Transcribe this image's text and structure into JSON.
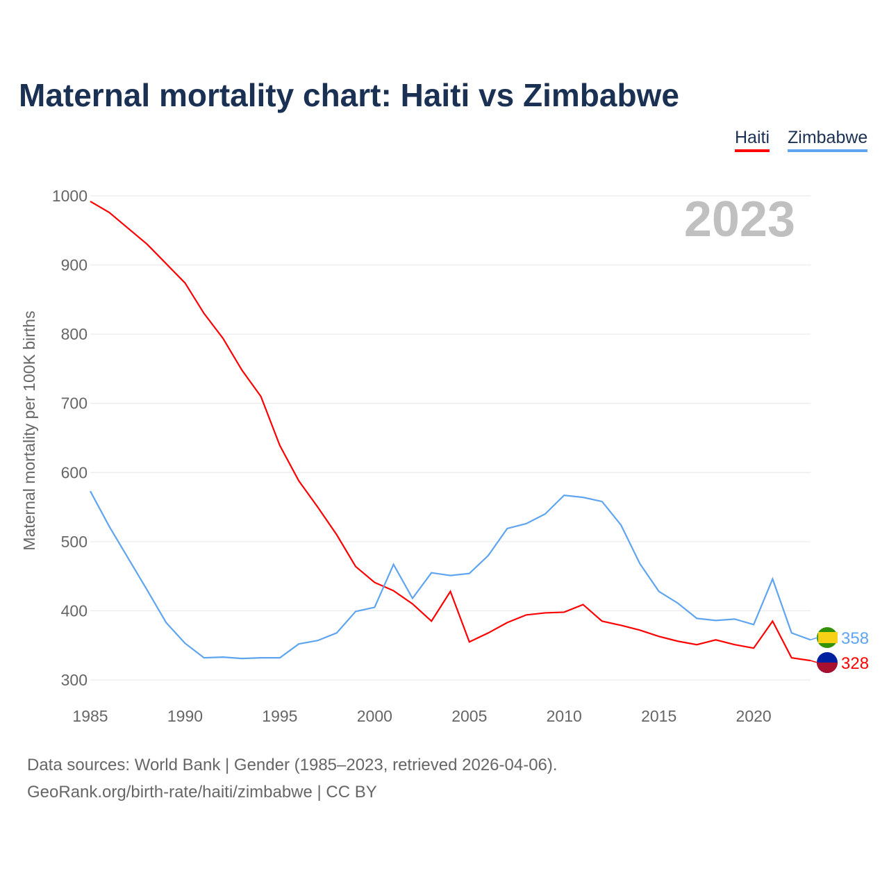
{
  "title": "Maternal mortality chart: Haiti vs Zimbabwe",
  "legend": [
    "Haiti",
    "Zimbabwe"
  ],
  "footer": {
    "line1": "Data sources: World Bank | Gender (1985–2023, retrieved 2026-04-06).",
    "line2": "GeoRank.org/birth-rate/haiti/zimbabwe | CC BY"
  },
  "chart_data": {
    "type": "line",
    "title": "Maternal mortality chart: Haiti vs Zimbabwe",
    "ylabel": "Maternal mortality per 100K births",
    "xlabel": "",
    "year_label": "2023",
    "xlim": [
      1985,
      2023
    ],
    "ylim": [
      300,
      1000
    ],
    "xticks": [
      1985,
      1990,
      1995,
      2000,
      2005,
      2010,
      2015,
      2020
    ],
    "yticks": [
      300,
      400,
      500,
      600,
      700,
      800,
      900,
      1000
    ],
    "grid": true,
    "legend_position": "top-right",
    "x": [
      1985,
      1986,
      1987,
      1988,
      1989,
      1990,
      1991,
      1992,
      1993,
      1994,
      1995,
      1996,
      1997,
      1998,
      1999,
      2000,
      2001,
      2002,
      2003,
      2004,
      2005,
      2006,
      2007,
      2008,
      2009,
      2010,
      2011,
      2012,
      2013,
      2014,
      2015,
      2016,
      2017,
      2018,
      2019,
      2020,
      2021,
      2022,
      2023
    ],
    "series": [
      {
        "name": "Haiti",
        "color": "#ff0000",
        "end_label": "328",
        "values": [
          992,
          976,
          953,
          930,
          902,
          874,
          830,
          794,
          748,
          710,
          639,
          588,
          550,
          510,
          464,
          441,
          429,
          410,
          385,
          428,
          355,
          368,
          383,
          394,
          397,
          398,
          409,
          385,
          379,
          372,
          363,
          356,
          351,
          358,
          351,
          346,
          385,
          332,
          328
        ]
      },
      {
        "name": "Zimbabwe",
        "color": "#5ea4ee",
        "end_label": "358",
        "values": [
          573,
          522,
          476,
          430,
          383,
          353,
          332,
          333,
          331,
          332,
          332,
          352,
          357,
          368,
          399,
          405,
          467,
          418,
          455,
          451,
          454,
          480,
          519,
          526,
          540,
          567,
          564,
          558,
          524,
          468,
          428,
          411,
          389,
          386,
          388,
          380,
          446,
          368,
          358
        ]
      }
    ]
  }
}
